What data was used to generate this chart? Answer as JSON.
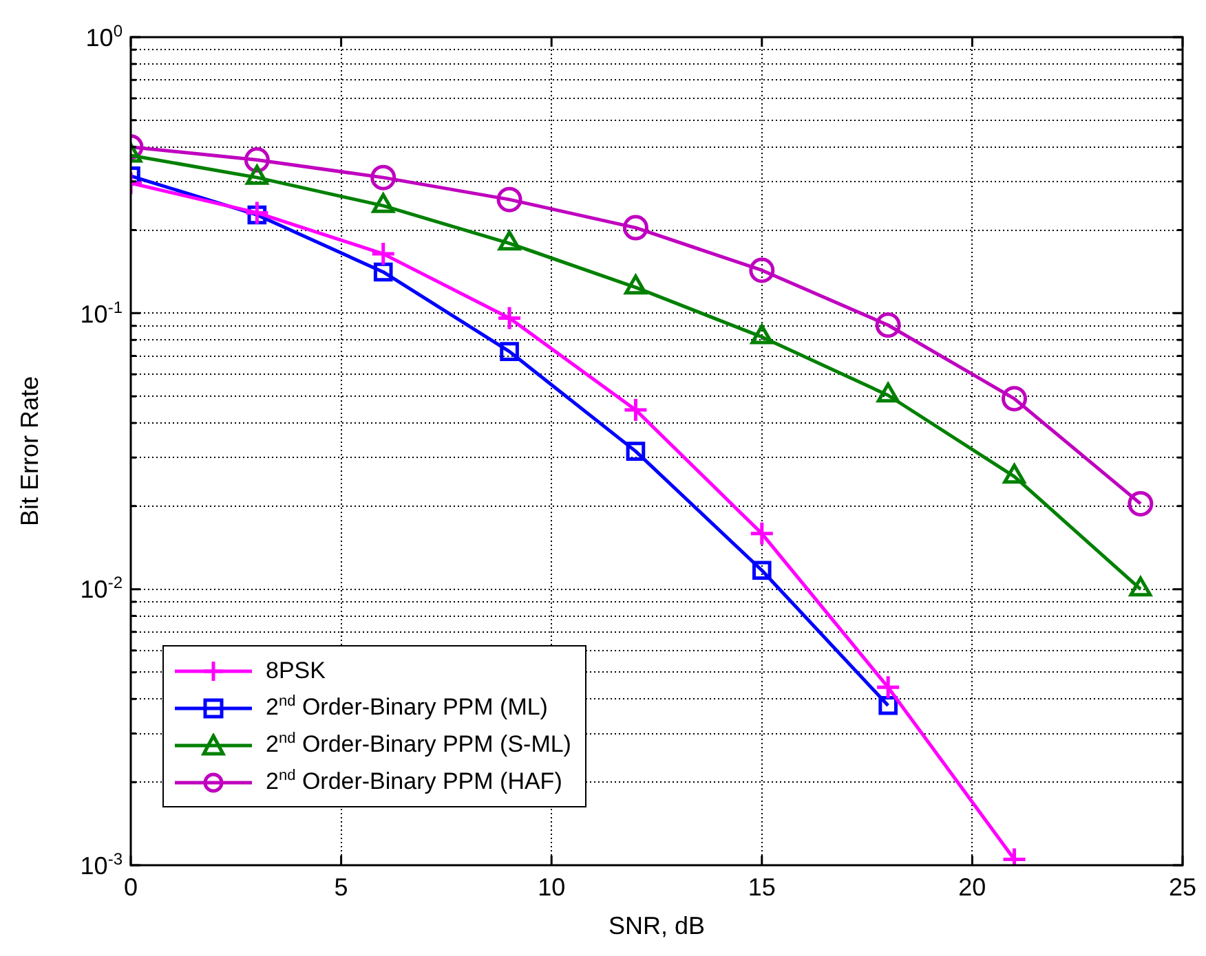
{
  "chart_data": {
    "type": "line",
    "xlabel": "SNR, dB",
    "ylabel": "Bit Error Rate",
    "x": [
      0,
      3,
      6,
      9,
      12,
      15,
      18,
      21,
      24
    ],
    "series": [
      {
        "name": "8PSK",
        "color": "#ff00ff",
        "marker": "cross",
        "values": [
          0.296,
          0.231,
          0.164,
          0.096,
          0.0446,
          0.0159,
          0.00441,
          0.00105,
          null
        ]
      },
      {
        "name": "2$^{nd}$ Order-Binary PPM (ML)",
        "color": "#0000ff",
        "marker": "square",
        "values": [
          0.314,
          0.227,
          0.141,
          0.0726,
          0.0316,
          0.0117,
          0.00379,
          null,
          null
        ]
      },
      {
        "name": "2$^{nd}$ Order-Binary PPM (S-ML)",
        "color": "#008000",
        "marker": "triangle",
        "values": [
          0.373,
          0.31,
          0.245,
          0.179,
          0.124,
          0.082,
          0.0504,
          0.0256,
          0.01
        ]
      },
      {
        "name": "2$^{nd}$ Order-Binary PPM (HAF)",
        "color": "#bf00bf",
        "marker": "circle",
        "values": [
          0.4,
          0.359,
          0.31,
          0.258,
          0.204,
          0.143,
          0.0905,
          0.049,
          0.0204
        ]
      }
    ],
    "log": "y",
    "xlim": [
      0,
      25
    ],
    "xticks": [
      0,
      5,
      10,
      15,
      20,
      25
    ],
    "ylim": [
      0.001,
      1
    ],
    "yticks": [
      {
        "value": 0.001,
        "label": "10$^{-3}$"
      },
      {
        "value": 0.002,
        "label": null
      },
      {
        "value": 0.003,
        "label": null
      },
      {
        "value": 0.004,
        "label": null
      },
      {
        "value": 0.005,
        "label": null
      },
      {
        "value": 0.006,
        "label": null
      },
      {
        "value": 0.007,
        "label": null
      },
      {
        "value": 0.008,
        "label": null
      },
      {
        "value": 0.009,
        "label": null
      },
      {
        "value": 0.01,
        "label": "10$^{-2}$"
      },
      {
        "value": 0.02,
        "label": null
      },
      {
        "value": 0.03,
        "label": null
      },
      {
        "value": 0.04,
        "label": null
      },
      {
        "value": 0.05,
        "label": null
      },
      {
        "value": 0.06,
        "label": null
      },
      {
        "value": 0.07,
        "label": null
      },
      {
        "value": 0.08,
        "label": null
      },
      {
        "value": 0.09,
        "label": null
      },
      {
        "value": 0.1,
        "label": "10$^{-1}$"
      },
      {
        "value": 0.2,
        "label": null
      },
      {
        "value": 0.3,
        "label": null
      },
      {
        "value": 0.4,
        "label": null
      },
      {
        "value": 0.5,
        "label": null
      },
      {
        "value": 0.6,
        "label": null
      },
      {
        "value": 0.7,
        "label": null
      },
      {
        "value": 0.8,
        "label": null
      },
      {
        "value": 0.9,
        "label": null
      },
      {
        "value": 1,
        "label": "10$^{0}$"
      }
    ],
    "grid": true,
    "legend": "bottom left",
    "line_style": "solid"
  }
}
